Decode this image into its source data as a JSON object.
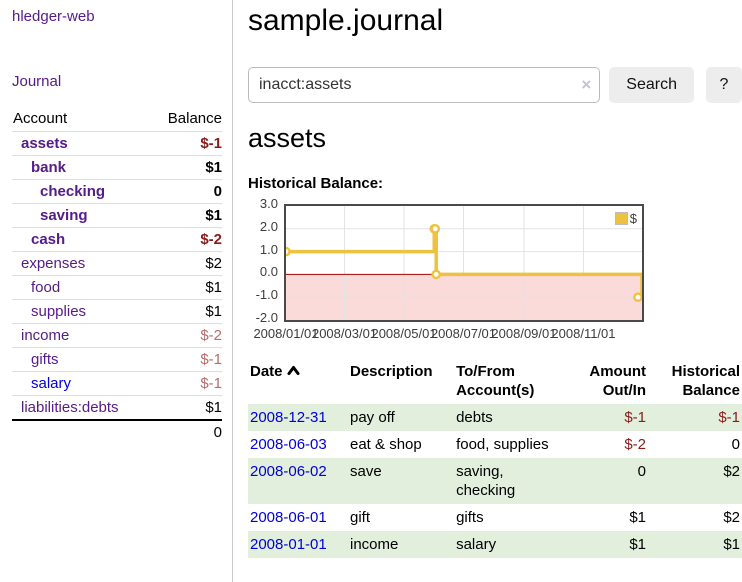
{
  "app": {
    "title": "hledger-web"
  },
  "sidebar": {
    "journal_link": "Journal",
    "table": {
      "account_header": "Account",
      "balance_header": "Balance",
      "rows": [
        {
          "name": "assets",
          "balance": "$-1",
          "indent": 1,
          "bold": true,
          "neg": "strong"
        },
        {
          "name": "bank",
          "balance": "$1",
          "indent": 2,
          "bold": true
        },
        {
          "name": "checking",
          "balance": "0",
          "indent": 3,
          "bold": true
        },
        {
          "name": "saving",
          "balance": "$1",
          "indent": 3,
          "bold": true
        },
        {
          "name": "cash",
          "balance": "$-2",
          "indent": 2,
          "bold": true,
          "neg": "strong"
        },
        {
          "name": "expenses",
          "balance": "$2",
          "indent": 1
        },
        {
          "name": "food",
          "balance": "$1",
          "indent": 2
        },
        {
          "name": "supplies",
          "balance": "$1",
          "indent": 2
        },
        {
          "name": "income",
          "balance": "$-2",
          "indent": 1,
          "neg": "muted"
        },
        {
          "name": "gifts",
          "balance": "$-1",
          "indent": 2,
          "neg": "muted"
        },
        {
          "name": "salary",
          "balance": "$-1",
          "indent": 2,
          "neg": "muted",
          "blue": true
        },
        {
          "name": "liabilities:debts",
          "balance": "$1",
          "indent": 1
        }
      ],
      "total": "0"
    }
  },
  "main": {
    "title": "sample.journal",
    "search": {
      "value": "inacct:assets",
      "clear_icon": "×",
      "button_label": "Search",
      "help_label": "?"
    },
    "account_heading": "assets",
    "chart_heading": "Historical Balance:"
  },
  "chart_data": {
    "type": "line",
    "title": "Historical Balance",
    "step": true,
    "series": [
      {
        "name": "$",
        "color": "#edc240",
        "points": [
          [
            "2008-01-01",
            1
          ],
          [
            "2008-06-01",
            2
          ],
          [
            "2008-06-02",
            2
          ],
          [
            "2008-06-03",
            0
          ],
          [
            "2008-12-31",
            -1
          ]
        ]
      }
    ],
    "xlim": [
      "2008-01-01",
      "2008-12-31"
    ],
    "ylim": [
      -2,
      3
    ],
    "y_ticks": [
      3.0,
      2.0,
      1.0,
      0.0,
      -1.0,
      -2.0
    ],
    "x_ticks": [
      "2008/01/01",
      "2008/03/01",
      "2008/05/01",
      "2008/07/01",
      "2008/09/01",
      "2008/11/01"
    ],
    "grid": true,
    "legend_position": "top-right",
    "negative_region_color": "#fbdada",
    "zero_line_color": "#a40000",
    "grid_color": "#e3e3e3"
  },
  "register": {
    "headers": {
      "date": "Date",
      "description": "Description",
      "account": "To/From Account(s)",
      "amount": "Amount Out/In",
      "balance": "Historical Balance"
    },
    "rows": [
      {
        "date": "2008-12-31",
        "description": "pay off",
        "accounts": "debts",
        "amount": "$-1",
        "balance": "$-1"
      },
      {
        "date": "2008-06-03",
        "description": "eat & shop",
        "accounts": "food, supplies",
        "amount": "$-2",
        "balance": "0"
      },
      {
        "date": "2008-06-02",
        "description": "save",
        "accounts": "saving, checking",
        "amount": "0",
        "balance": "$2"
      },
      {
        "date": "2008-06-01",
        "description": "gift",
        "accounts": "gifts",
        "amount": "$1",
        "balance": "$2"
      },
      {
        "date": "2008-01-01",
        "description": "income",
        "accounts": "salary",
        "amount": "$1",
        "balance": "$1"
      }
    ]
  },
  "colors": {
    "link_purple": "#551a8b",
    "link_blue": "#0000dd",
    "negative_strong": "#8b1a1a",
    "negative_muted": "#bd6a6a",
    "row_stripe_green": "#e1efdc",
    "series_yellow": "#edc240",
    "negative_region_pink": "#fbdada",
    "zero_line_red": "#a40000"
  }
}
